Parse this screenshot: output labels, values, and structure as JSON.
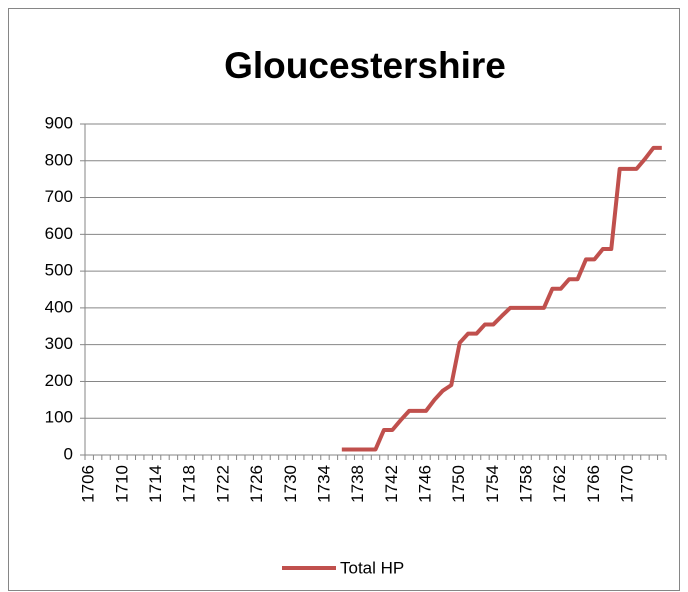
{
  "chart_data": {
    "type": "line",
    "title": "Gloucestershire",
    "categories": [
      "1706",
      null,
      null,
      null,
      "1710",
      null,
      null,
      null,
      "1714",
      null,
      null,
      null,
      "1718",
      null,
      null,
      null,
      "1722",
      null,
      null,
      null,
      "1726",
      null,
      null,
      null,
      "1730",
      null,
      null,
      null,
      "1734",
      null,
      null,
      null,
      "1738",
      null,
      null,
      null,
      "1742",
      null,
      null,
      null,
      "1746",
      null,
      null,
      null,
      "1750",
      null,
      null,
      null,
      "1754",
      null,
      null,
      null,
      "1758",
      null,
      null,
      null,
      "1762",
      null,
      null,
      null,
      "1766",
      null,
      null,
      null,
      "1770",
      null,
      null,
      null,
      null
    ],
    "series": [
      {
        "name": "Total HP",
        "color": "#c0504d",
        "values": [
          null,
          null,
          null,
          null,
          null,
          null,
          null,
          null,
          null,
          null,
          null,
          null,
          null,
          null,
          null,
          null,
          null,
          null,
          null,
          null,
          null,
          null,
          null,
          null,
          null,
          null,
          null,
          null,
          null,
          null,
          15,
          15,
          15,
          15,
          15,
          68,
          68,
          95,
          120,
          120,
          120,
          150,
          175,
          190,
          305,
          330,
          330,
          355,
          355,
          378,
          400,
          400,
          400,
          400,
          400,
          452,
          452,
          478,
          478,
          532,
          532,
          560,
          560,
          778,
          778,
          778,
          805,
          835,
          835
        ]
      }
    ],
    "ylim": [
      0,
      900
    ],
    "yticks": [
      0,
      100,
      200,
      300,
      400,
      500,
      600,
      700,
      800,
      900
    ],
    "grid": true,
    "legend": "bottom"
  }
}
